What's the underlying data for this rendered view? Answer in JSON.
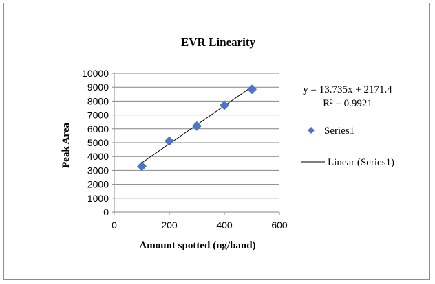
{
  "chart_data": {
    "type": "scatter",
    "title": "EVR Linearity",
    "xlabel": "Amount spotted (ng/band)",
    "ylabel": "Peak Area",
    "xlim": [
      0,
      600
    ],
    "ylim": [
      0,
      10000
    ],
    "x_ticks": [
      "0",
      "200",
      "400",
      "600"
    ],
    "y_ticks": [
      "0",
      "1000",
      "2000",
      "3000",
      "4000",
      "5000",
      "6000",
      "7000",
      "8000",
      "9000",
      "10000"
    ],
    "grid": "horizontal",
    "legend_placement": "right",
    "series": [
      {
        "name": "Series1",
        "color": "#4a76c5",
        "marker": "diamond",
        "points": [
          {
            "x": 100,
            "y": 3300
          },
          {
            "x": 200,
            "y": 5120
          },
          {
            "x": 300,
            "y": 6200
          },
          {
            "x": 400,
            "y": 7700
          },
          {
            "x": 500,
            "y": 8850
          }
        ]
      }
    ],
    "trendline": {
      "name": "Linear (Series1)",
      "type": "linear",
      "slope": 13.735,
      "intercept": 2171.4,
      "x_range": [
        100,
        500
      ],
      "color": "#000000"
    },
    "equation_text": "y = 13.735x + 2171.4",
    "r_squared_text": "R² = 0.9921"
  }
}
